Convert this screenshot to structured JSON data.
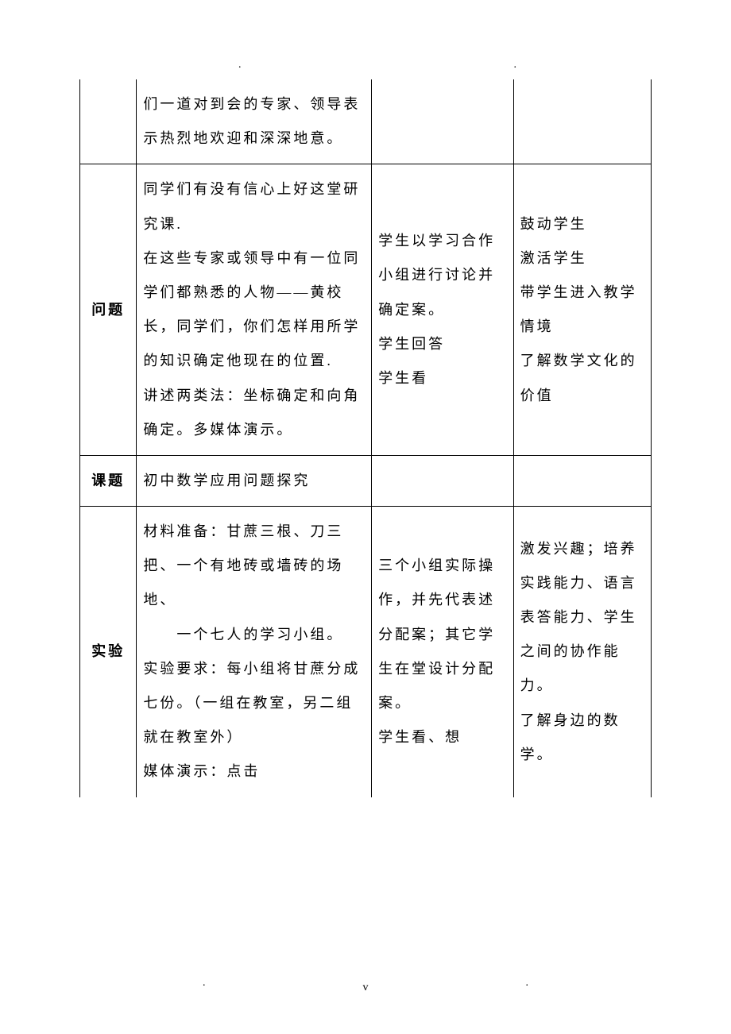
{
  "table": {
    "rows": [
      {
        "label": "",
        "c2": "们一道对到会的专家、领导表示热烈地欢迎和深深地意。",
        "c3": "",
        "c4": ""
      },
      {
        "label": "问题",
        "c2": "同学们有没有信心上好这堂研究课.\n在这些专家或领导中有一位同学们都熟悉的人物——黄校长，同学们，你们怎样用所学的知识确定他现在的位置.\n讲述两类法：坐标确定和向角确定。多媒体演示。",
        "c3": "学生以学习合作小组进行讨论并确定案。\n学生回答\n学生看",
        "c4": "鼓动学生\n激活学生\n带学生进入教学情境\n了解数学文化的价值"
      },
      {
        "label": "课题",
        "c2": "初中数学应用问题探究",
        "c3": "",
        "c4": ""
      },
      {
        "label": "实验",
        "c2": "材料准备：甘蔗三根、刀三把、一个有地砖或墙砖的场地、\n　　一个七人的学习小组。\n实验要求：每小组将甘蔗分成七份。（一组在教室，另二组就在教室外）\n媒体演示：点击",
        "c3": "三个小组实际操作，并先代表述分配案；其它学生在堂设计分配案。\n学生看、想",
        "c4": "激发兴趣；培养实践能力、语言表答能力、学生之间的协作能力。\n了解身边的数学。"
      }
    ]
  },
  "footer": {
    "page": "v",
    "dot": "."
  }
}
